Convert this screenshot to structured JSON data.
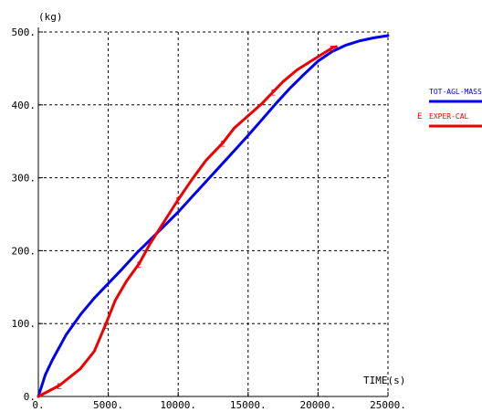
{
  "chart_data": {
    "type": "line",
    "title": "",
    "ylabel": "(kg)",
    "xlabel": "TIME(s)",
    "xlim": [
      0,
      25000
    ],
    "ylim": [
      0,
      500
    ],
    "x_ticks": [
      0,
      5000,
      10000,
      15000,
      20000,
      25000
    ],
    "x_tick_labels": [
      "0.",
      "5000.",
      "10000.",
      "15000.",
      "20000.",
      "25000."
    ],
    "y_ticks": [
      0,
      100,
      200,
      300,
      400,
      500
    ],
    "y_tick_labels": [
      "0.",
      "100.",
      "200.",
      "300.",
      "400.",
      "500."
    ],
    "grid": true,
    "legend_position": "right",
    "series": [
      {
        "name": "TOT-AGL-MASS",
        "color": "#0000ee",
        "marker": "",
        "x": [
          0,
          500,
          1000,
          2000,
          3000,
          4000,
          5000,
          6000,
          7000,
          8000,
          9000,
          10000,
          11000,
          12000,
          13000,
          14000,
          15000,
          16000,
          17000,
          18000,
          19000,
          20000,
          21000,
          22000,
          23000,
          24000,
          25000
        ],
        "y": [
          0,
          30,
          50,
          85,
          112,
          135,
          155,
          175,
          196,
          215,
          234,
          253,
          274,
          295,
          316,
          337,
          358,
          380,
          402,
          423,
          442,
          460,
          473,
          482,
          488,
          492,
          495
        ]
      },
      {
        "name": "EXPER-CAL",
        "color": "#ee0000",
        "marker": "E",
        "x": [
          0,
          1500,
          3000,
          4000,
          4800,
          5500,
          6300,
          7200,
          8000,
          9000,
          10000,
          11000,
          12000,
          13200,
          14000,
          15000,
          16000,
          16800,
          17500,
          18500,
          19500,
          20500,
          21000,
          21300
        ],
        "y": [
          0,
          15,
          38,
          62,
          98,
          132,
          158,
          182,
          210,
          240,
          270,
          298,
          324,
          348,
          368,
          385,
          402,
          418,
          432,
          448,
          460,
          472,
          478,
          480
        ]
      }
    ],
    "e_markers": [
      {
        "x": 1500,
        "y": 15
      },
      {
        "x": 4800,
        "y": 98
      },
      {
        "x": 7200,
        "y": 182
      },
      {
        "x": 10000,
        "y": 270
      },
      {
        "x": 13200,
        "y": 348
      },
      {
        "x": 16800,
        "y": 418
      },
      {
        "x": 21000,
        "y": 478
      }
    ],
    "marker_label": "E"
  }
}
